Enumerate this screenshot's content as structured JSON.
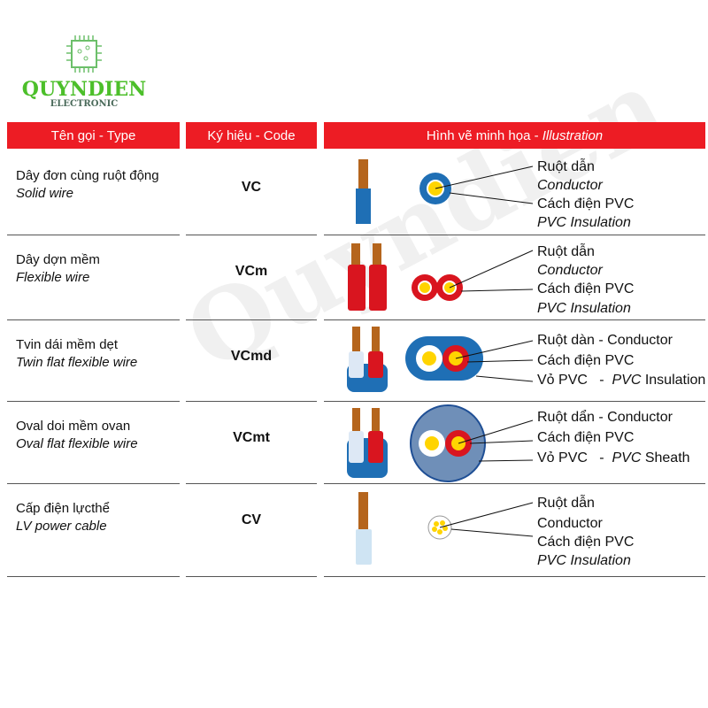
{
  "logo": {
    "name": "QUYNDIEN",
    "sub": "ELECTRONIC"
  },
  "watermark": "Quyndien",
  "header": {
    "type": "Tên gọi - Type",
    "code": "Ký hiệu - Code",
    "illustration_vi": "Hình vẽ minh họa - ",
    "illustration_en": "Illustration"
  },
  "rows": [
    {
      "name_vi": "Dây đơn cùng ruột động",
      "name_en": "Solid wire",
      "code": "VC",
      "labels": [
        "Ruột dẫn",
        "Conductor",
        "Cách điện PVC",
        "PVC Insulation"
      ]
    },
    {
      "name_vi": "Dây dợn mềm",
      "name_en": "Flexible wire",
      "code": "VCm",
      "labels": [
        "Ruột dẫn",
        "Conductor",
        "Cách điện PVC",
        "PVC Insulation"
      ]
    },
    {
      "name_vi": "Tvin dái mềm dẹt",
      "name_en": "Twin flat flexible wire",
      "code": "VCmd",
      "labels": [
        "Ruột dàn - Conductor",
        "Cách điện PVC",
        "Vỏ PVC   -  ",
        "PVC",
        " Insulation"
      ]
    },
    {
      "name_vi": "Oval doi mềm ovan",
      "name_en": "Oval flat flexible wire",
      "code": "VCmt",
      "labels": [
        "Ruột dẩn - Conductor",
        "Cách điện PVC",
        "Vỏ PVC   -  ",
        "PVC",
        " Sheath"
      ]
    },
    {
      "name_vi": "Cấp điện lựcthể",
      "name_en": "LV power cable",
      "code": "CV",
      "labels": [
        "Ruột dẫn",
        "Conductor",
        "Cách điện PVC",
        "PVC Insulation"
      ]
    }
  ],
  "colors": {
    "header": "#ed1c24",
    "logo": "#4cbf2a",
    "copper": "#b5651d",
    "blue": "#1f6fb5",
    "red": "#d9151f",
    "yellow": "#ffd400"
  }
}
